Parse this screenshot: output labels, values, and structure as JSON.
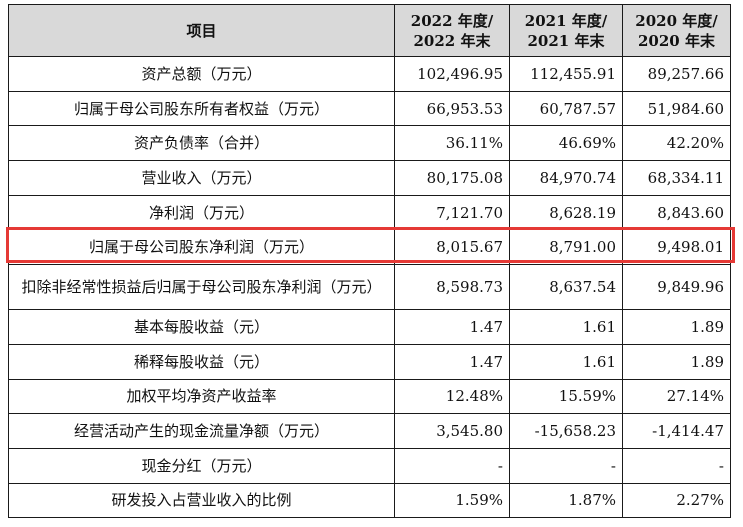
{
  "table": {
    "headers": [
      "项目",
      "2022 年度/\n2022 年末",
      "2021 年度/\n2021 年末",
      "2020 年度/\n2020 年末"
    ],
    "rows": [
      {
        "item": "资产总额（万元）",
        "v2022": "102,496.95",
        "v2021": "112,455.91",
        "v2020": "89,257.66"
      },
      {
        "item": "归属于母公司股东所有者权益（万元）",
        "v2022": "66,953.53",
        "v2021": "60,787.57",
        "v2020": "51,984.60"
      },
      {
        "item": "资产负债率（合并）",
        "v2022": "36.11%",
        "v2021": "46.69%",
        "v2020": "42.20%"
      },
      {
        "item": "营业收入（万元）",
        "v2022": "80,175.08",
        "v2021": "84,970.74",
        "v2020": "68,334.11"
      },
      {
        "item": "净利润（万元）",
        "v2022": "7,121.70",
        "v2021": "8,628.19",
        "v2020": "8,843.60"
      },
      {
        "item": "归属于母公司股东净利润（万元）",
        "v2022": "8,015.67",
        "v2021": "8,791.00",
        "v2020": "9,498.01"
      },
      {
        "item": "扣除非经常性损益后归属于母公司股东净利润（万元）",
        "v2022": "8,598.73",
        "v2021": "8,637.54",
        "v2020": "9,849.96"
      },
      {
        "item": "基本每股收益（元）",
        "v2022": "1.47",
        "v2021": "1.61",
        "v2020": "1.89"
      },
      {
        "item": "稀释每股收益（元）",
        "v2022": "1.47",
        "v2021": "1.61",
        "v2020": "1.89"
      },
      {
        "item": "加权平均净资产收益率",
        "v2022": "12.48%",
        "v2021": "15.59%",
        "v2020": "27.14%"
      },
      {
        "item": "经营活动产生的现金流量净额（万元）",
        "v2022": "3,545.80",
        "v2021": "-15,658.23",
        "v2020": "-1,414.47"
      },
      {
        "item": "现金分红（万元）",
        "v2022": "-",
        "v2021": "-",
        "v2020": "-"
      },
      {
        "item": "研发投入占营业收入的比例",
        "v2022": "1.59%",
        "v2021": "1.87%",
        "v2020": "2.27%"
      }
    ]
  },
  "highlight": {
    "row_item": "归属于母公司股东净利润（万元）",
    "color": "#e53935"
  },
  "colors": {
    "header_bg": "#d9d9d9",
    "border": "#1a1a1a"
  }
}
